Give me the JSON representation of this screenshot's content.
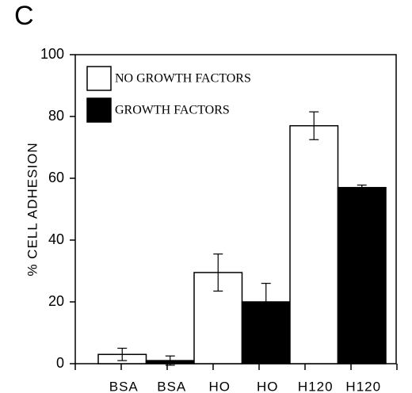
{
  "chart_data": {
    "type": "bar",
    "panel_label": "C",
    "y_label": "% CELL ADHESION",
    "categories": [
      "BSA",
      "HO",
      "H120"
    ],
    "series": [
      {
        "name": "NO GROWTH FACTORS",
        "color": "#ffffff",
        "values": [
          3,
          29.5,
          77
        ],
        "errors": [
          2,
          6,
          4.5
        ]
      },
      {
        "name": "GROWTH FACTORS",
        "color": "#000000",
        "values": [
          1,
          20,
          57
        ],
        "errors": [
          1.5,
          6,
          0.8
        ]
      }
    ],
    "ylim": [
      0,
      100
    ],
    "yticks": [
      0,
      20,
      40,
      60,
      80,
      100
    ],
    "legend": "upper left"
  }
}
